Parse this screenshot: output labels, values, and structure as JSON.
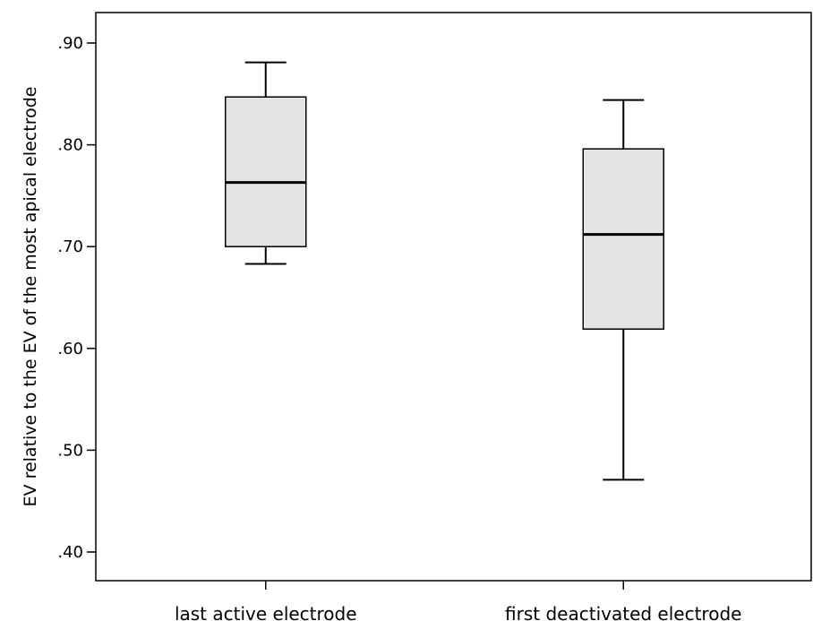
{
  "chart_data": {
    "type": "boxplot",
    "ylabel": "EV relative to the EV of the most apical electrode",
    "xlabel": "",
    "ylim": [
      0.385,
      0.93
    ],
    "yticks": [
      0.4,
      0.5,
      0.6,
      0.7,
      0.8,
      0.9
    ],
    "ytick_labels": [
      ".40",
      ".50",
      ".60",
      ".70",
      ".80",
      ".90"
    ],
    "categories": [
      "last active electrode",
      "first deactivated electrode"
    ],
    "boxes": [
      {
        "label": "last active electrode",
        "min": 0.683,
        "q1": 0.7,
        "median": 0.763,
        "q3": 0.847,
        "max": 0.881
      },
      {
        "label": "first deactivated electrode",
        "min": 0.471,
        "q1": 0.619,
        "median": 0.712,
        "q3": 0.796,
        "max": 0.844
      }
    ],
    "box_fill": "#e3e3e3",
    "line_color": "#000000",
    "grid": false,
    "legend": "none"
  }
}
